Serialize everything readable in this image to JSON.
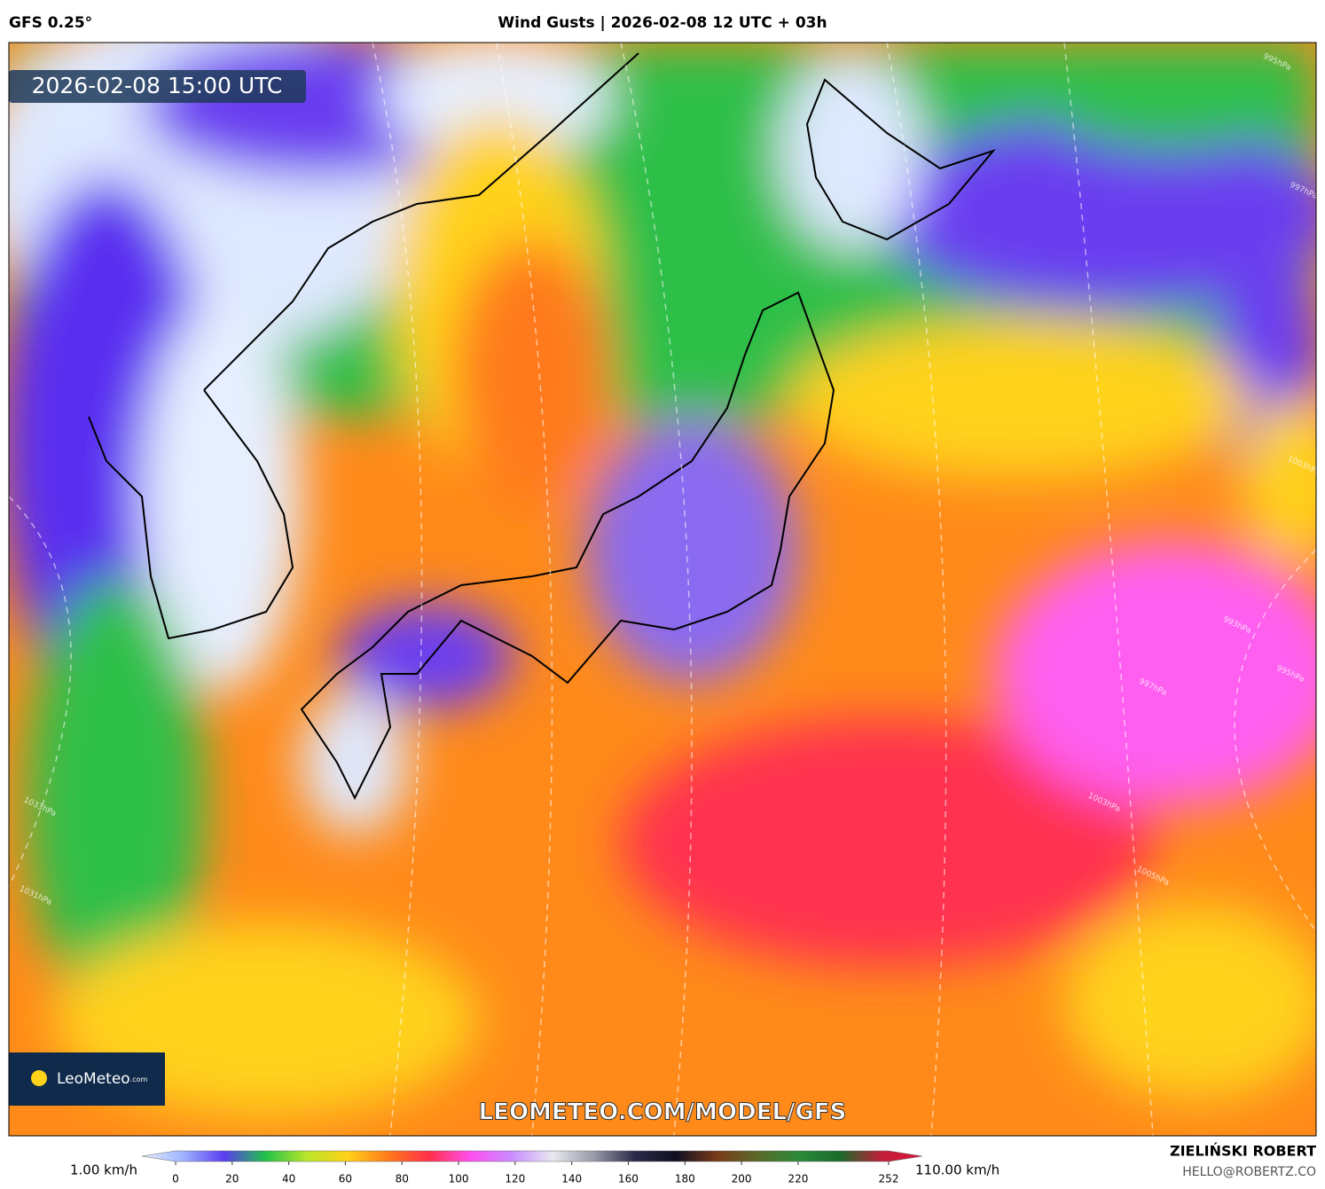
{
  "header": {
    "model": "GFS 0.25°",
    "title": "Wind Gusts | 2026-02-08 12 UTC + 03h"
  },
  "map": {
    "valid_time": "2026-02-08 15:00 UTC",
    "logo": {
      "name": "LeoMeteo",
      "suffix": ".com"
    },
    "watermark": "LEOMETEO.COM/MODEL/GFS",
    "isobar_labels": [
      "995hPa",
      "997hPa",
      "1003hPa",
      "993hPa",
      "995hPa",
      "997hPa",
      "1003hPa",
      "1005hPa",
      "1033hPa",
      "1031hPa"
    ]
  },
  "colorbar": {
    "min_label": "1.00 km/h",
    "max_label": "110.00 km/h",
    "range": [
      0,
      252
    ],
    "ticks": [
      0,
      20,
      40,
      60,
      80,
      100,
      120,
      140,
      160,
      180,
      200,
      220,
      252
    ],
    "colors": [
      "#e6f0ff",
      "#9fb4ff",
      "#5a3df0",
      "#1fc14a",
      "#b8e62a",
      "#ffd21a",
      "#ff7a1a",
      "#ff2f4a",
      "#ff4ff0",
      "#c98cff",
      "#e8e8f0",
      "#9a9aa8",
      "#2a2a4a",
      "#101020",
      "#7a3a1a",
      "#5a6a2a",
      "#2a8a3a",
      "#1a6a2a",
      "#c0203a",
      "#e0103a"
    ]
  },
  "footer": {
    "author": "ZIELIŃSKI ROBERT",
    "email": "HELLO@ROBERTZ.CO"
  }
}
